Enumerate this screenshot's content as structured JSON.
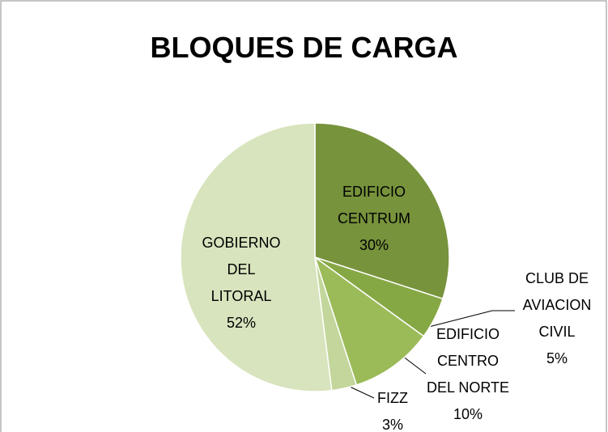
{
  "chart_data": {
    "type": "pie",
    "title": "BLOQUES DE CARGA",
    "categories": [
      "EDIFICIO CENTRUM",
      "CLUB DE AVIACION CIVIL",
      "EDIFICIO CENTRO DEL NORTE",
      "FIZZ",
      "GOBIERNO DEL LITORAL"
    ],
    "values": [
      30,
      5,
      10,
      3,
      52
    ],
    "value_labels": [
      "30%",
      "5%",
      "10%",
      "3%",
      "52%"
    ],
    "colors": [
      "#77933c",
      "#86a844",
      "#9bbb59",
      "#c3d69b",
      "#d7e4bd"
    ]
  }
}
